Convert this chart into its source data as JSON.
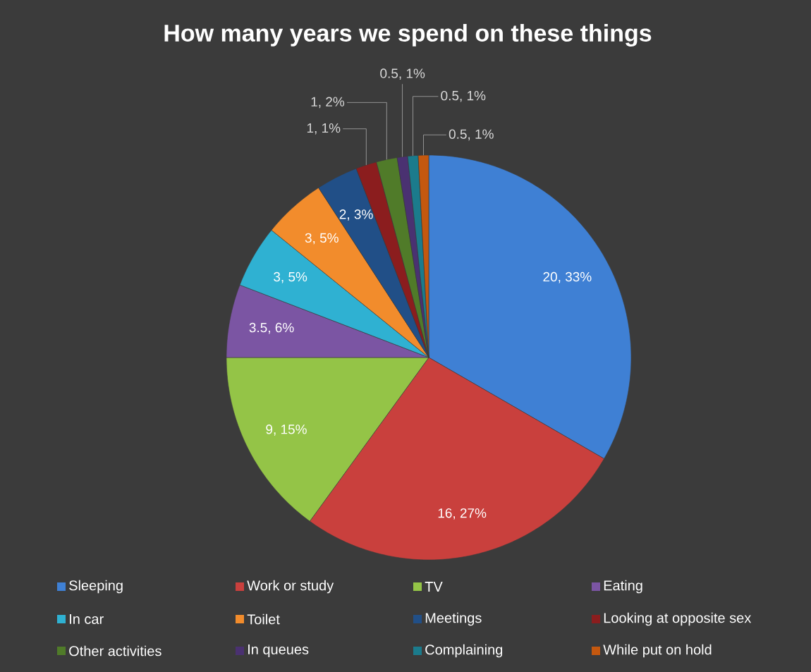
{
  "chart_data": {
    "type": "pie",
    "title": "How many years we spend on these things",
    "categories": [
      "Sleeping",
      "Work or study",
      "TV",
      "Eating",
      "In car",
      "Toilet",
      "Meetings",
      "Looking at opposite sex",
      "Other activities",
      "In queues",
      "Complaining",
      "While put on hold"
    ],
    "values": [
      20,
      16,
      9,
      3.5,
      3,
      3,
      2,
      1,
      1,
      0.5,
      0.5,
      0.5
    ],
    "colors": [
      "#3f80d4",
      "#c9403d",
      "#94c447",
      "#7b55a3",
      "#2fb1d2",
      "#f28c2c",
      "#214f87",
      "#8b1d1e",
      "#507b29",
      "#4a3171",
      "#1b7b8c",
      "#c4580f"
    ],
    "value_labels": [
      "20, 33%",
      "16, 27%",
      "9, 15%",
      "3.5, 6%",
      "3, 5%",
      "3, 5%",
      "2, 3%",
      "1, 1%",
      "1, 2%",
      "0.5, 1%",
      "0.5, 1%",
      "0.5, 1%"
    ],
    "legend": "bottom"
  }
}
